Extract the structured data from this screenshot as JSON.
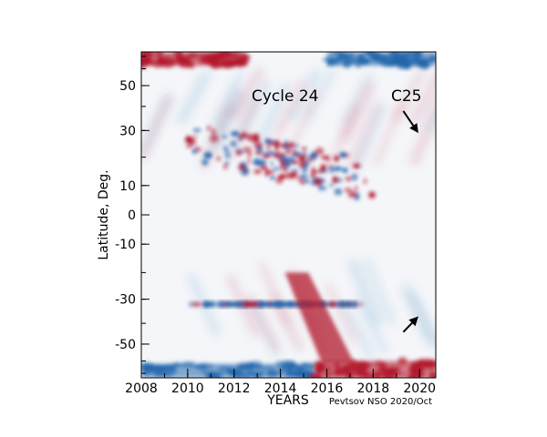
{
  "chart_data": {
    "type": "heatmap",
    "title": "",
    "xlabel": "YEARS",
    "ylabel": "Latitude, Deg.",
    "xlim": [
      2008,
      2020.7
    ],
    "ylim": [
      -75,
      75
    ],
    "y_scale": "sine-latitude",
    "x_ticks": [
      2008,
      2010,
      2012,
      2014,
      2016,
      2018,
      2020
    ],
    "y_tick_labels": [
      50,
      30,
      10,
      0,
      -10,
      -30,
      -50
    ],
    "grid": false,
    "colormap": {
      "positive": "#b2182b",
      "zero": "#f7f7f7",
      "negative": "#2166ac"
    },
    "annotations": [
      {
        "text": "Cycle 24",
        "x": 2013.2,
        "y": 55
      },
      {
        "text": "C25",
        "x": 2019.5,
        "y": 55
      },
      {
        "text": "Pevtsov NSO 2020/Oct",
        "placement": "below-right"
      }
    ],
    "arrows": [
      {
        "name": "north-c25-arrow",
        "from": [
          2019.3,
          38
        ],
        "to": [
          2019.95,
          29
        ]
      },
      {
        "name": "south-c25-arrow",
        "from": [
          2019.3,
          -44
        ],
        "to": [
          2019.95,
          -37
        ]
      }
    ],
    "features": [
      {
        "name": "polar-north-early",
        "polarity": "positive",
        "x_range": [
          2008,
          2012.5
        ],
        "lat_range": [
          62,
          75
        ]
      },
      {
        "name": "polar-north-late",
        "polarity": "negative",
        "x_range": [
          2016,
          2020.7
        ],
        "lat_range": [
          62,
          75
        ]
      },
      {
        "name": "polar-south-early",
        "polarity": "negative",
        "x_range": [
          2008,
          2015.5
        ],
        "lat_range": [
          -75,
          -62
        ]
      },
      {
        "name": "polar-south-late",
        "polarity": "positive",
        "x_range": [
          2015.5,
          2020.7
        ],
        "lat_range": [
          -75,
          -60
        ]
      },
      {
        "name": "north-active-belt",
        "polarity": "mixed",
        "x_range": [
          2010,
          2018
        ],
        "lat_range": [
          5,
          32
        ]
      },
      {
        "name": "south-active-belt",
        "polarity": "mixed-negative",
        "x_range": [
          2010,
          2017.5
        ],
        "lat_range": [
          -32,
          -5
        ]
      },
      {
        "name": "south-poleward-surge",
        "polarity": "positive",
        "x_range": [
          2014.5,
          2017
        ],
        "lat_range": [
          -60,
          -20
        ]
      }
    ]
  }
}
